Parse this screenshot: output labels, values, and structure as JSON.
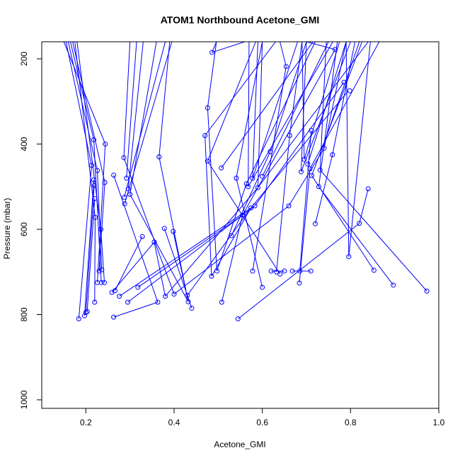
{
  "chart_data": {
    "type": "line",
    "title": "ATOM1 Northbound Acetone_GMI",
    "xlabel": "Acetone_GMI",
    "ylabel": "Pressure (mbar)",
    "xlim": [
      0.1,
      1.0
    ],
    "ylim": [
      1020,
      160
    ],
    "x_ticks": [
      0.2,
      0.4,
      0.6,
      0.8,
      1.0
    ],
    "x_tick_labels": [
      "0.2",
      "0.4",
      "0.6",
      "0.8",
      "1.0"
    ],
    "y_ticks": [
      200,
      400,
      600,
      800,
      1000
    ],
    "y_tick_labels": [
      "200",
      "400",
      "600",
      "800",
      "1000"
    ],
    "y_reversed": true,
    "grid": false,
    "series_color": "#0000ff",
    "points": [
      [
        0.486,
        185
      ],
      [
        0.654,
        218
      ],
      [
        0.765,
        178
      ],
      [
        0.785,
        255
      ],
      [
        0.798,
        275
      ],
      [
        0.476,
        315
      ],
      [
        0.47,
        380
      ],
      [
        0.662,
        380
      ],
      [
        0.711,
        368
      ],
      [
        0.618,
        418
      ],
      [
        0.74,
        410
      ],
      [
        0.759,
        425
      ],
      [
        0.366,
        430
      ],
      [
        0.476,
        440
      ],
      [
        0.507,
        456
      ],
      [
        0.541,
        480
      ],
      [
        0.578,
        480
      ],
      [
        0.6,
        476
      ],
      [
        0.564,
        493
      ],
      [
        0.568,
        500
      ],
      [
        0.59,
        502
      ],
      [
        0.695,
        436
      ],
      [
        0.703,
        447
      ],
      [
        0.708,
        458
      ],
      [
        0.688,
        465
      ],
      [
        0.712,
        474
      ],
      [
        0.731,
        461
      ],
      [
        0.728,
        500
      ],
      [
        0.84,
        505
      ],
      [
        0.574,
        550
      ],
      [
        0.583,
        545
      ],
      [
        0.555,
        567
      ],
      [
        0.66,
        545
      ],
      [
        0.72,
        587
      ],
      [
        0.53,
        615
      ],
      [
        0.82,
        586
      ],
      [
        0.578,
        698
      ],
      [
        0.62,
        698
      ],
      [
        0.632,
        700
      ],
      [
        0.64,
        705
      ],
      [
        0.65,
        698
      ],
      [
        0.668,
        698
      ],
      [
        0.685,
        698
      ],
      [
        0.71,
        698
      ],
      [
        0.684,
        726
      ],
      [
        0.796,
        664
      ],
      [
        0.853,
        696
      ],
      [
        0.897,
        731
      ],
      [
        0.973,
        745
      ],
      [
        0.6,
        736
      ],
      [
        0.485,
        710
      ],
      [
        0.497,
        698
      ],
      [
        0.508,
        771
      ],
      [
        0.545,
        810
      ],
      [
        0.286,
        432
      ],
      [
        0.292,
        480
      ],
      [
        0.296,
        505
      ],
      [
        0.3,
        518
      ],
      [
        0.287,
        525
      ],
      [
        0.288,
        540
      ],
      [
        0.263,
        473
      ],
      [
        0.328,
        617
      ],
      [
        0.355,
        630
      ],
      [
        0.378,
        598
      ],
      [
        0.398,
        605
      ],
      [
        0.38,
        757
      ],
      [
        0.4,
        752
      ],
      [
        0.43,
        755
      ],
      [
        0.432,
        770
      ],
      [
        0.44,
        785
      ],
      [
        0.363,
        771
      ],
      [
        0.318,
        736
      ],
      [
        0.295,
        771
      ],
      [
        0.276,
        757
      ],
      [
        0.266,
        744
      ],
      [
        0.259,
        748
      ],
      [
        0.263,
        806
      ],
      [
        0.244,
        400
      ],
      [
        0.243,
        490
      ],
      [
        0.226,
        462
      ],
      [
        0.218,
        390
      ],
      [
        0.213,
        450
      ],
      [
        0.218,
        484
      ],
      [
        0.219,
        497
      ],
      [
        0.22,
        528
      ],
      [
        0.221,
        572
      ],
      [
        0.234,
        600
      ],
      [
        0.236,
        695
      ],
      [
        0.23,
        698
      ],
      [
        0.226,
        725
      ],
      [
        0.235,
        725
      ],
      [
        0.242,
        725
      ],
      [
        0.22,
        771
      ],
      [
        0.203,
        793
      ],
      [
        0.2,
        795
      ],
      [
        0.197,
        803
      ],
      [
        0.184,
        810
      ]
    ],
    "segments": [
      [
        [
          0.486,
          185
        ],
        [
          0.56,
          160
        ]
      ],
      [
        [
          0.654,
          218
        ],
        [
          0.64,
          160
        ]
      ],
      [
        [
          0.765,
          178
        ],
        [
          0.7,
          160
        ]
      ],
      [
        [
          0.476,
          315
        ],
        [
          0.496,
          160
        ]
      ],
      [
        [
          0.47,
          380
        ],
        [
          0.63,
          160
        ]
      ],
      [
        [
          0.662,
          380
        ],
        [
          0.69,
          160
        ]
      ],
      [
        [
          0.618,
          418
        ],
        [
          0.7,
          160
        ]
      ],
      [
        [
          0.74,
          410
        ],
        [
          0.79,
          160
        ]
      ],
      [
        [
          0.759,
          425
        ],
        [
          0.81,
          160
        ]
      ],
      [
        [
          0.366,
          430
        ],
        [
          0.39,
          160
        ]
      ],
      [
        [
          0.476,
          440
        ],
        [
          0.585,
          160
        ]
      ],
      [
        [
          0.507,
          456
        ],
        [
          0.715,
          160
        ]
      ],
      [
        [
          0.541,
          480
        ],
        [
          0.6,
          160
        ]
      ],
      [
        [
          0.578,
          480
        ],
        [
          0.68,
          160
        ]
      ],
      [
        [
          0.6,
          476
        ],
        [
          0.75,
          160
        ]
      ],
      [
        [
          0.564,
          493
        ],
        [
          0.72,
          160
        ]
      ],
      [
        [
          0.568,
          500
        ],
        [
          0.76,
          160
        ]
      ],
      [
        [
          0.59,
          502
        ],
        [
          0.84,
          160
        ]
      ],
      [
        [
          0.695,
          436
        ],
        [
          0.775,
          160
        ]
      ],
      [
        [
          0.703,
          447
        ],
        [
          0.79,
          160
        ]
      ],
      [
        [
          0.708,
          458
        ],
        [
          0.865,
          160
        ]
      ],
      [
        [
          0.688,
          465
        ],
        [
          0.8,
          160
        ]
      ],
      [
        [
          0.712,
          474
        ],
        [
          0.826,
          160
        ]
      ],
      [
        [
          0.731,
          461
        ],
        [
          0.745,
          160
        ]
      ],
      [
        [
          0.728,
          500
        ],
        [
          0.77,
          160
        ]
      ],
      [
        [
          0.574,
          550
        ],
        [
          0.795,
          275
        ]
      ],
      [
        [
          0.583,
          545
        ],
        [
          0.785,
          255
        ]
      ],
      [
        [
          0.555,
          567
        ],
        [
          0.765,
          178
        ]
      ],
      [
        [
          0.66,
          545
        ],
        [
          0.74,
          410
        ]
      ],
      [
        [
          0.72,
          587
        ],
        [
          0.759,
          425
        ]
      ],
      [
        [
          0.53,
          615
        ],
        [
          0.618,
          418
        ]
      ],
      [
        [
          0.496,
          160
        ],
        [
          0.486,
          185
        ]
      ],
      [
        [
          0.59,
          160
        ],
        [
          0.578,
          480
        ]
      ],
      [
        [
          0.6,
          160
        ],
        [
          0.59,
          502
        ]
      ],
      [
        [
          0.57,
          160
        ],
        [
          0.568,
          500
        ]
      ],
      [
        [
          0.69,
          160
        ],
        [
          0.695,
          436
        ]
      ],
      [
        [
          0.7,
          160
        ],
        [
          0.688,
          465
        ]
      ],
      [
        [
          0.79,
          160
        ],
        [
          0.796,
          664
        ]
      ],
      [
        [
          0.82,
          586
        ],
        [
          0.84,
          505
        ]
      ],
      [
        [
          0.654,
          218
        ],
        [
          0.578,
          698
        ]
      ],
      [
        [
          0.476,
          315
        ],
        [
          0.497,
          698
        ]
      ],
      [
        [
          0.47,
          380
        ],
        [
          0.485,
          710
        ]
      ],
      [
        [
          0.662,
          380
        ],
        [
          0.632,
          700
        ]
      ],
      [
        [
          0.711,
          368
        ],
        [
          0.685,
          698
        ]
      ],
      [
        [
          0.712,
          474
        ],
        [
          0.853,
          696
        ]
      ],
      [
        [
          0.728,
          500
        ],
        [
          0.897,
          731
        ]
      ],
      [
        [
          0.731,
          461
        ],
        [
          0.973,
          745
        ]
      ],
      [
        [
          0.6,
          736
        ],
        [
          0.541,
          480
        ]
      ],
      [
        [
          0.62,
          698
        ],
        [
          0.65,
          698
        ]
      ],
      [
        [
          0.668,
          698
        ],
        [
          0.71,
          698
        ]
      ],
      [
        [
          0.684,
          726
        ],
        [
          0.708,
          458
        ]
      ],
      [
        [
          0.64,
          705
        ],
        [
          0.476,
          440
        ]
      ],
      [
        [
          0.545,
          810
        ],
        [
          0.82,
          586
        ]
      ],
      [
        [
          0.508,
          771
        ],
        [
          0.555,
          567
        ]
      ],
      [
        [
          0.497,
          698
        ],
        [
          0.564,
          493
        ]
      ],
      [
        [
          0.485,
          710
        ],
        [
          0.574,
          550
        ]
      ],
      [
        [
          0.845,
          160
        ],
        [
          0.796,
          664
        ]
      ],
      [
        [
          0.82,
          160
        ],
        [
          0.736,
          410
        ]
      ],
      [
        [
          0.3,
          160
        ],
        [
          0.286,
          432
        ]
      ],
      [
        [
          0.315,
          160
        ],
        [
          0.292,
          480
        ]
      ],
      [
        [
          0.33,
          160
        ],
        [
          0.296,
          505
        ]
      ],
      [
        [
          0.36,
          160
        ],
        [
          0.3,
          518
        ]
      ],
      [
        [
          0.38,
          160
        ],
        [
          0.287,
          525
        ]
      ],
      [
        [
          0.395,
          160
        ],
        [
          0.288,
          540
        ]
      ],
      [
        [
          0.263,
          473
        ],
        [
          0.363,
          771
        ]
      ],
      [
        [
          0.276,
          757
        ],
        [
          0.574,
          550
        ]
      ],
      [
        [
          0.295,
          771
        ],
        [
          0.583,
          545
        ]
      ],
      [
        [
          0.318,
          736
        ],
        [
          0.555,
          567
        ]
      ],
      [
        [
          0.38,
          757
        ],
        [
          0.59,
          502
        ]
      ],
      [
        [
          0.4,
          752
        ],
        [
          0.66,
          545
        ]
      ],
      [
        [
          0.43,
          755
        ],
        [
          0.574,
          550
        ]
      ],
      [
        [
          0.432,
          770
        ],
        [
          0.366,
          430
        ]
      ],
      [
        [
          0.44,
          785
        ],
        [
          0.378,
          598
        ]
      ],
      [
        [
          0.398,
          605
        ],
        [
          0.432,
          770
        ]
      ],
      [
        [
          0.263,
          806
        ],
        [
          0.363,
          771
        ]
      ],
      [
        [
          0.266,
          744
        ],
        [
          0.328,
          617
        ]
      ],
      [
        [
          0.259,
          748
        ],
        [
          0.355,
          630
        ]
      ],
      [
        [
          0.355,
          630
        ],
        [
          0.38,
          757
        ]
      ],
      [
        [
          0.3,
          518
        ],
        [
          0.432,
          770
        ]
      ],
      [
        [
          0.286,
          432
        ],
        [
          0.4,
          752
        ]
      ],
      [
        [
          0.15,
          160
        ],
        [
          0.244,
          400
        ]
      ],
      [
        [
          0.16,
          160
        ],
        [
          0.226,
          462
        ]
      ],
      [
        [
          0.165,
          160
        ],
        [
          0.218,
          390
        ]
      ],
      [
        [
          0.17,
          160
        ],
        [
          0.243,
          490
        ]
      ],
      [
        [
          0.155,
          160
        ],
        [
          0.213,
          450
        ]
      ],
      [
        [
          0.175,
          160
        ],
        [
          0.221,
          572
        ]
      ],
      [
        [
          0.18,
          160
        ],
        [
          0.234,
          600
        ]
      ],
      [
        [
          0.218,
          484
        ],
        [
          0.197,
          803
        ]
      ],
      [
        [
          0.219,
          497
        ],
        [
          0.2,
          795
        ]
      ],
      [
        [
          0.22,
          528
        ],
        [
          0.203,
          793
        ]
      ],
      [
        [
          0.213,
          450
        ],
        [
          0.184,
          810
        ]
      ],
      [
        [
          0.226,
          462
        ],
        [
          0.236,
          695
        ]
      ],
      [
        [
          0.243,
          490
        ],
        [
          0.23,
          698
        ]
      ],
      [
        [
          0.244,
          400
        ],
        [
          0.226,
          725
        ]
      ],
      [
        [
          0.221,
          572
        ],
        [
          0.22,
          771
        ]
      ],
      [
        [
          0.234,
          600
        ],
        [
          0.242,
          725
        ]
      ],
      [
        [
          0.218,
          390
        ],
        [
          0.235,
          725
        ]
      ]
    ]
  }
}
